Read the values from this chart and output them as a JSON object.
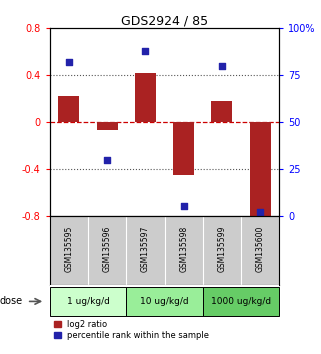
{
  "title": "GDS2924 / 85",
  "samples": [
    "GSM135595",
    "GSM135596",
    "GSM135597",
    "GSM135598",
    "GSM135599",
    "GSM135600"
  ],
  "log2_ratio": [
    0.22,
    -0.07,
    0.42,
    -0.45,
    0.18,
    -0.85
  ],
  "percentile": [
    82,
    30,
    88,
    5,
    80,
    2
  ],
  "bar_color": "#aa2222",
  "dot_color": "#2222aa",
  "ylim_left": [
    -0.8,
    0.8
  ],
  "ylim_right": [
    0,
    100
  ],
  "yticks_left": [
    -0.8,
    -0.4,
    0.0,
    0.4,
    0.8
  ],
  "ytick_labels_left": [
    "-0.8",
    "-0.4",
    "0",
    "0.4",
    "0.8"
  ],
  "yticks_right": [
    0,
    25,
    50,
    75,
    100
  ],
  "ytick_labels_right": [
    "0",
    "25",
    "50",
    "75",
    "100%"
  ],
  "dose_label": "dose",
  "legend_bar": "log2 ratio",
  "legend_dot": "percentile rank within the sample",
  "bg_sample": "#cccccc",
  "bg_dose_colors": [
    "#ccffcc",
    "#99ee99",
    "#66cc66"
  ],
  "hline_zero_color": "#cc0000",
  "hline_dotted_color": "#555555"
}
